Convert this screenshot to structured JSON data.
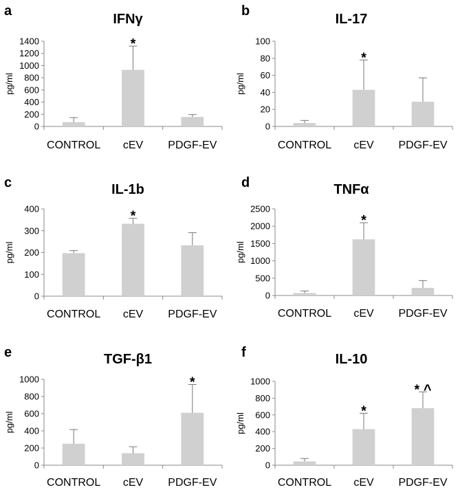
{
  "chart_data": [
    {
      "panel_label": "a",
      "title": "IFNγ",
      "type": "bar",
      "categories": [
        "CONTROL",
        "cEV",
        "PDGF-EV"
      ],
      "values": [
        70,
        930,
        155
      ],
      "errors": [
        75,
        390,
        40
      ],
      "annotations": [
        "",
        "*",
        ""
      ],
      "ylabel": "pg/ml",
      "ylim": [
        0,
        1400
      ],
      "yticks": [
        0,
        200,
        400,
        600,
        800,
        1000,
        1200,
        1400
      ],
      "grid": false,
      "bar_color": "#d0d0d0"
    },
    {
      "panel_label": "b",
      "title": "IL-17",
      "type": "bar",
      "categories": [
        "CONTROL",
        "cEV",
        "PDGF-EV"
      ],
      "values": [
        4,
        43,
        29
      ],
      "errors": [
        3,
        35,
        28
      ],
      "annotations": [
        "",
        "*",
        ""
      ],
      "ylabel": "pg/ml",
      "ylim": [
        0,
        100
      ],
      "yticks": [
        0,
        20,
        40,
        60,
        80,
        100
      ],
      "grid": false,
      "bar_color": "#d0d0d0"
    },
    {
      "panel_label": "c",
      "title": "IL-1b",
      "type": "bar",
      "categories": [
        "CONTROL",
        "cEV",
        "PDGF-EV"
      ],
      "values": [
        197,
        332,
        233
      ],
      "errors": [
        12,
        25,
        58
      ],
      "annotations": [
        "",
        "*",
        ""
      ],
      "ylabel": "pg/ml",
      "ylim": [
        0,
        400
      ],
      "yticks": [
        0,
        100,
        200,
        300,
        400
      ],
      "grid": false,
      "bar_color": "#d0d0d0"
    },
    {
      "panel_label": "d",
      "title": "TNFα",
      "type": "bar",
      "categories": [
        "CONTROL",
        "cEV",
        "PDGF-EV"
      ],
      "values": [
        70,
        1620,
        220
      ],
      "errors": [
        60,
        480,
        210
      ],
      "annotations": [
        "",
        "*",
        ""
      ],
      "ylabel": "pg/ml",
      "ylim": [
        0,
        2500
      ],
      "yticks": [
        0,
        500,
        1000,
        1500,
        2000,
        2500
      ],
      "grid": false,
      "bar_color": "#d0d0d0"
    },
    {
      "panel_label": "e",
      "title": "TGF-β1",
      "type": "bar",
      "categories": [
        "CONTROL",
        "cEV",
        "PDGF-EV"
      ],
      "values": [
        250,
        140,
        610
      ],
      "errors": [
        165,
        75,
        330
      ],
      "annotations": [
        "",
        "",
        "*"
      ],
      "ylabel": "pg/ml",
      "ylim": [
        0,
        1000
      ],
      "yticks": [
        0,
        200,
        400,
        600,
        800,
        1000
      ],
      "grid": false,
      "bar_color": "#d0d0d0"
    },
    {
      "panel_label": "f",
      "title": "IL-10",
      "type": "bar",
      "categories": [
        "CONTROL",
        "cEV",
        "PDGF-EV"
      ],
      "values": [
        45,
        430,
        680
      ],
      "errors": [
        35,
        190,
        195
      ],
      "annotations": [
        "",
        "*",
        "* ^"
      ],
      "ylabel": "pg/ml",
      "ylim": [
        0,
        1000
      ],
      "yticks": [
        0,
        200,
        400,
        600,
        800,
        1000
      ],
      "grid": false,
      "bar_color": "#d0d0d0"
    }
  ]
}
